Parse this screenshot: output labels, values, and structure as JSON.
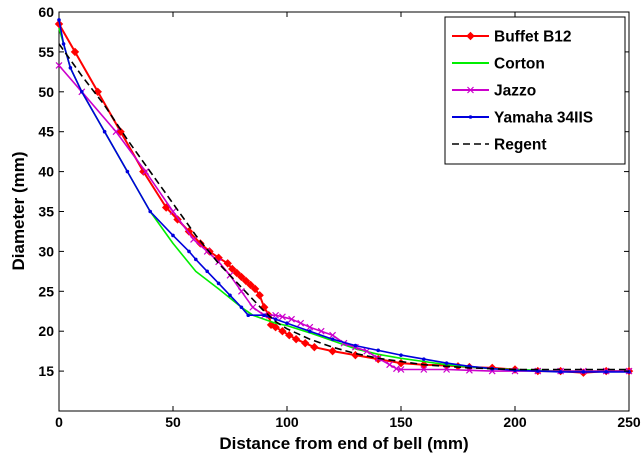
{
  "chart_data": {
    "type": "line",
    "title": "",
    "xlabel": "Distance from end of bell (mm)",
    "ylabel": "Diameter (mm)",
    "xlim": [
      0,
      250
    ],
    "ylim": [
      10,
      60
    ],
    "xticks": [
      0,
      50,
      100,
      150,
      200,
      250
    ],
    "yticks": [
      15,
      20,
      25,
      30,
      35,
      40,
      45,
      50,
      55,
      60
    ],
    "grid": false,
    "legend_position": "top-right",
    "series": [
      {
        "name": "Buffet B12",
        "color": "#ff0000",
        "marker": "diamond",
        "x": [
          0,
          7,
          17,
          27,
          37,
          47,
          52,
          57,
          62,
          66,
          70,
          74,
          76,
          78,
          80,
          82,
          84,
          86,
          88,
          90,
          92,
          93,
          95,
          98,
          101,
          104,
          108,
          112,
          120,
          130,
          140,
          150,
          160,
          170,
          175,
          180,
          190,
          200,
          210,
          220,
          230,
          240,
          250
        ],
        "y": [
          58.5,
          55,
          50,
          45,
          40,
          35.5,
          34,
          32.5,
          31,
          30,
          29.2,
          28.5,
          27.8,
          27.3,
          26.8,
          26.3,
          25.8,
          25.3,
          24.5,
          23,
          22,
          20.8,
          20.5,
          20,
          19.5,
          19,
          18.5,
          18,
          17.5,
          17,
          16.5,
          16,
          15.8,
          15.7,
          15.6,
          15.5,
          15.4,
          15.2,
          15,
          15,
          14.8,
          15,
          15
        ]
      },
      {
        "name": "Corton",
        "color": "#00ee00",
        "marker": "none",
        "x": [
          0,
          5,
          10,
          20,
          30,
          40,
          50,
          60,
          70,
          80,
          85,
          90,
          95,
          100,
          110,
          120,
          130,
          140,
          150,
          160,
          170,
          180,
          190,
          200,
          210,
          220,
          230,
          240,
          250
        ],
        "y": [
          58,
          53,
          50,
          45,
          40,
          35,
          31,
          27.5,
          25.3,
          23,
          22,
          21.5,
          21,
          20.7,
          19.8,
          18.8,
          17.8,
          17.1,
          16.6,
          16.2,
          15.8,
          15.5,
          15.3,
          15.2,
          15.1,
          15,
          15,
          15,
          15
        ]
      },
      {
        "name": "Jazzo",
        "color": "#cc00cc",
        "marker": "x",
        "x": [
          0,
          10,
          25,
          38,
          50,
          59,
          65,
          70,
          75,
          80,
          85,
          90,
          95,
          98,
          102,
          106,
          110,
          115,
          120,
          125,
          130,
          135,
          140,
          145,
          148,
          150,
          160,
          170,
          180,
          190,
          200,
          210,
          220,
          230,
          240,
          250
        ],
        "y": [
          53.3,
          50,
          45,
          40,
          35,
          31.5,
          30,
          28.7,
          27,
          25,
          23,
          22,
          22,
          21.8,
          21.5,
          21,
          20.5,
          20,
          19.5,
          18.5,
          18,
          17.5,
          16.6,
          15.8,
          15.3,
          15.2,
          15.2,
          15.2,
          15.1,
          15,
          15,
          15,
          15,
          15,
          15,
          15
        ]
      },
      {
        "name": "Yamaha 34IIS",
        "color": "#0000dd",
        "marker": "dot",
        "x": [
          0,
          2,
          5,
          10,
          20,
          30,
          40,
          50,
          57,
          60,
          65,
          70,
          75,
          80,
          83,
          90,
          95,
          100,
          110,
          120,
          130,
          140,
          150,
          160,
          170,
          180,
          190,
          200,
          210,
          220,
          230,
          240,
          250
        ],
        "y": [
          59,
          56,
          53,
          50,
          45,
          40,
          35,
          32,
          30,
          29,
          27.5,
          26,
          24.5,
          23,
          22,
          22,
          21.5,
          21,
          20,
          19,
          18.2,
          17.6,
          17,
          16.5,
          16,
          15.6,
          15.3,
          15.1,
          15,
          14.9,
          14.9,
          14.9,
          14.9
        ]
      },
      {
        "name": "Regent",
        "color": "#000000",
        "marker": "none",
        "dash": "dashed",
        "x": [
          0,
          10,
          20,
          30,
          40,
          50,
          60,
          70,
          80,
          90,
          95,
          100,
          110,
          120,
          130,
          140,
          150,
          160,
          170,
          180,
          190,
          200,
          210,
          220,
          230,
          240,
          250
        ],
        "y": [
          56,
          52,
          48.3,
          44,
          40,
          36,
          32,
          28.5,
          25.5,
          22.5,
          21.2,
          20.3,
          19,
          18,
          17.2,
          16.6,
          16.2,
          15.8,
          15.6,
          15.4,
          15.3,
          15.2,
          15.2,
          15.2,
          15.2,
          15.2,
          15.2
        ]
      }
    ]
  }
}
